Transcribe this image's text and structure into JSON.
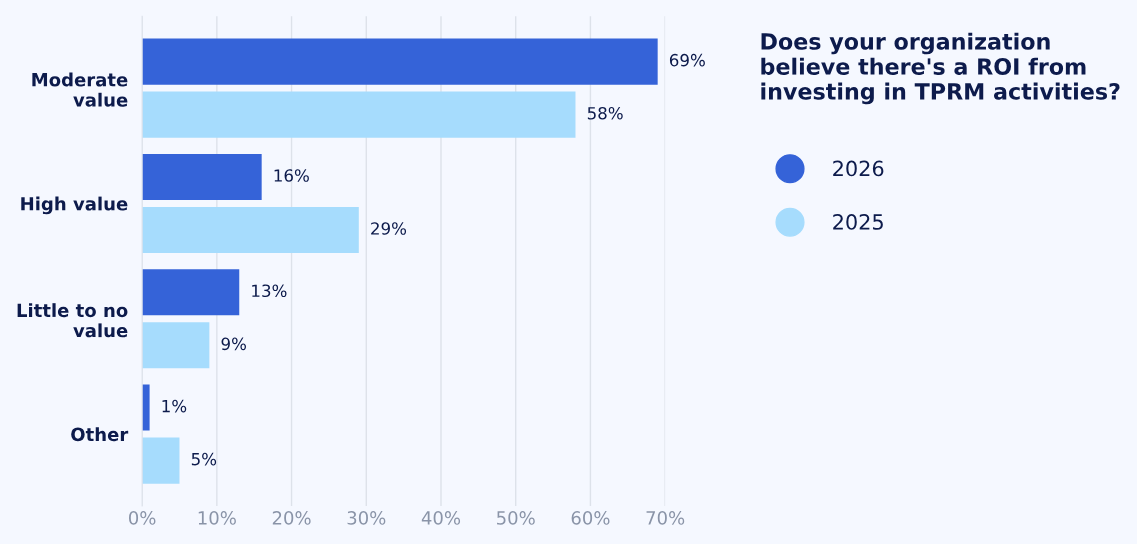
{
  "chart_data": {
    "type": "bar",
    "orientation": "horizontal",
    "title": "Does your organization believe there's a ROI from investing in TPRM activities?",
    "categories": [
      "Moderate value",
      "High value",
      "Little to no value",
      "Other"
    ],
    "series": [
      {
        "name": "2026",
        "color": "#3563d8",
        "values": [
          69,
          16,
          13,
          1
        ],
        "value_labels": [
          "69%",
          "16%",
          "13%",
          "1%"
        ]
      },
      {
        "name": "2025",
        "color": "#a6dcfd",
        "values": [
          58,
          29,
          9,
          5
        ],
        "value_labels": [
          "58%",
          "29%",
          "9%",
          "5%"
        ]
      }
    ],
    "xlim": [
      0,
      70
    ],
    "xticks": [
      {
        "value": 0,
        "label": "0%"
      },
      {
        "value": 10,
        "label": "10%"
      },
      {
        "value": 20,
        "label": "20%"
      },
      {
        "value": 30,
        "label": "30%"
      },
      {
        "value": 40,
        "label": "40%"
      },
      {
        "value": 50,
        "label": "50%"
      },
      {
        "value": 60,
        "label": "60%"
      },
      {
        "value": 70,
        "label": "70%"
      }
    ],
    "grid": "x",
    "legend": "right"
  }
}
